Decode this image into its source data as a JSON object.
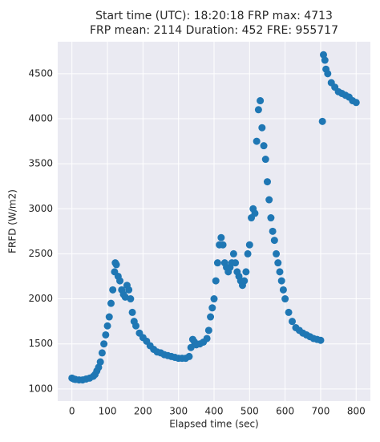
{
  "chart_data": {
    "type": "scatter",
    "title": [
      "Start time (UTC): 18:20:18 FRP max: 4713",
      "FRP mean: 2114 Duration: 452 FRE: 955717"
    ],
    "xlabel": "Elapsed time (sec)",
    "ylabel": "FRFD (W/m2)",
    "color": "#1f77b4",
    "grid": true,
    "xlim": [
      -40,
      840
    ],
    "ylim": [
      865,
      4855
    ],
    "xticks": [
      0,
      100,
      200,
      300,
      400,
      500,
      600,
      700,
      800
    ],
    "yticks": [
      1000,
      1500,
      2000,
      2500,
      3000,
      3500,
      4000,
      4500
    ],
    "x": [
      0,
      5,
      10,
      20,
      30,
      40,
      50,
      60,
      65,
      70,
      75,
      80,
      85,
      90,
      95,
      100,
      105,
      110,
      115,
      120,
      122,
      125,
      130,
      135,
      140,
      145,
      150,
      155,
      160,
      165,
      170,
      175,
      180,
      190,
      200,
      210,
      220,
      230,
      240,
      250,
      260,
      270,
      280,
      290,
      300,
      310,
      320,
      330,
      335,
      340,
      345,
      350,
      360,
      370,
      380,
      385,
      390,
      395,
      400,
      405,
      410,
      415,
      420,
      425,
      430,
      435,
      440,
      445,
      450,
      455,
      460,
      465,
      470,
      475,
      480,
      485,
      490,
      495,
      500,
      505,
      510,
      515,
      520,
      525,
      530,
      535,
      540,
      545,
      550,
      555,
      560,
      565,
      570,
      575,
      580,
      585,
      590,
      595,
      600,
      610,
      620,
      630,
      640,
      650,
      660,
      670,
      680,
      690,
      700,
      705,
      708,
      712,
      715,
      720,
      730,
      740,
      750,
      760,
      770,
      780,
      790,
      800
    ],
    "values": [
      1120,
      1110,
      1105,
      1100,
      1100,
      1110,
      1120,
      1140,
      1160,
      1200,
      1240,
      1300,
      1400,
      1500,
      1600,
      1700,
      1800,
      1950,
      2100,
      2300,
      2400,
      2380,
      2250,
      2200,
      2100,
      2050,
      2020,
      2150,
      2100,
      2000,
      1850,
      1750,
      1700,
      1620,
      1570,
      1530,
      1480,
      1440,
      1410,
      1400,
      1380,
      1370,
      1360,
      1350,
      1340,
      1340,
      1340,
      1360,
      1460,
      1550,
      1520,
      1490,
      1500,
      1520,
      1560,
      1650,
      1800,
      1900,
      2000,
      2200,
      2400,
      2600,
      2680,
      2600,
      2400,
      2350,
      2300,
      2350,
      2400,
      2500,
      2400,
      2300,
      2250,
      2200,
      2150,
      2200,
      2300,
      2500,
      2600,
      2900,
      3000,
      2950,
      3750,
      4100,
      4200,
      3900,
      3700,
      3550,
      3300,
      3100,
      2900,
      2750,
      2650,
      2500,
      2400,
      2300,
      2200,
      2100,
      2000,
      1850,
      1750,
      1680,
      1650,
      1620,
      1600,
      1580,
      1560,
      1550,
      1540,
      3970,
      4710,
      4650,
      4550,
      4500,
      4400,
      4350,
      4300,
      4280,
      4260,
      4240,
      4200,
      4180
    ]
  }
}
